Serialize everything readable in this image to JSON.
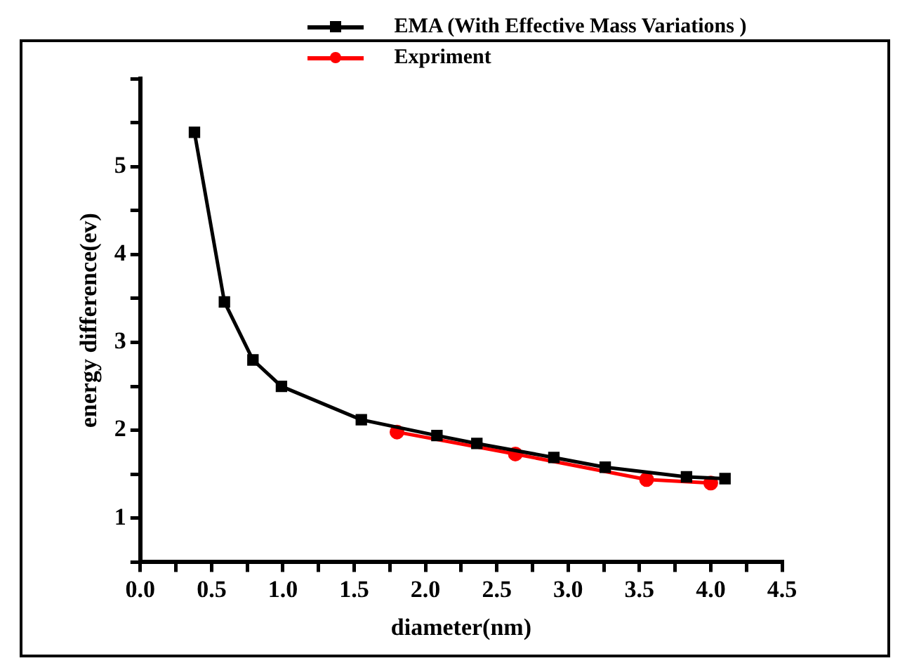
{
  "chart_data": {
    "type": "line",
    "xlabel": "diameter(nm)",
    "ylabel": "energy difference(ev)",
    "xlim": [
      0,
      4.5
    ],
    "xticks": [
      {
        "value": 0,
        "label": "0.0"
      },
      {
        "value": 0.25,
        "label": null
      },
      0.5,
      {
        "value": 0.75,
        "label": null
      },
      {
        "value": 1,
        "label": "1.0"
      },
      {
        "value": 1.25,
        "label": null
      },
      1.5,
      {
        "value": 1.75,
        "label": null
      },
      {
        "value": 2,
        "label": "2.0"
      },
      {
        "value": 2.25,
        "label": null
      },
      2.5,
      {
        "value": 2.75,
        "label": null
      },
      {
        "value": 3,
        "label": "3.0"
      },
      {
        "value": 3.25,
        "label": null
      },
      3.5,
      {
        "value": 3.75,
        "label": null
      },
      {
        "value": 4,
        "label": "4.0"
      },
      {
        "value": 4.25,
        "label": null
      },
      4.5
    ],
    "ylim": [
      0.5,
      6
    ],
    "yticks": [
      {
        "value": 0.5,
        "label": null
      },
      1,
      {
        "value": 1.5,
        "label": null
      },
      2,
      {
        "value": 2.5,
        "label": null
      },
      3,
      {
        "value": 3.5,
        "label": null
      },
      4,
      {
        "value": 4.5,
        "label": null
      },
      5,
      {
        "value": 5.5,
        "label": null
      },
      {
        "value": 6,
        "label": null
      }
    ],
    "grid": false,
    "legend": "top right",
    "marker": "square",
    "line_style": "solid",
    "series": [
      {
        "name": "EMA (With Effective Mass Variations )",
        "color": "#000000",
        "x": [
          0.38,
          0.59,
          0.79,
          0.99,
          1.55,
          2.08,
          2.36,
          2.9,
          3.26,
          3.83,
          4.1
        ],
        "values": [
          5.39,
          3.46,
          2.8,
          2.5,
          2.12,
          1.94,
          1.85,
          1.69,
          1.58,
          1.47,
          1.45
        ]
      },
      {
        "name": "Expriment",
        "color": "#ff0000",
        "marker": "circle",
        "x": [
          1.8,
          2.63,
          3.55,
          4.0
        ],
        "values": [
          1.98,
          1.73,
          1.44,
          1.4
        ]
      }
    ]
  }
}
